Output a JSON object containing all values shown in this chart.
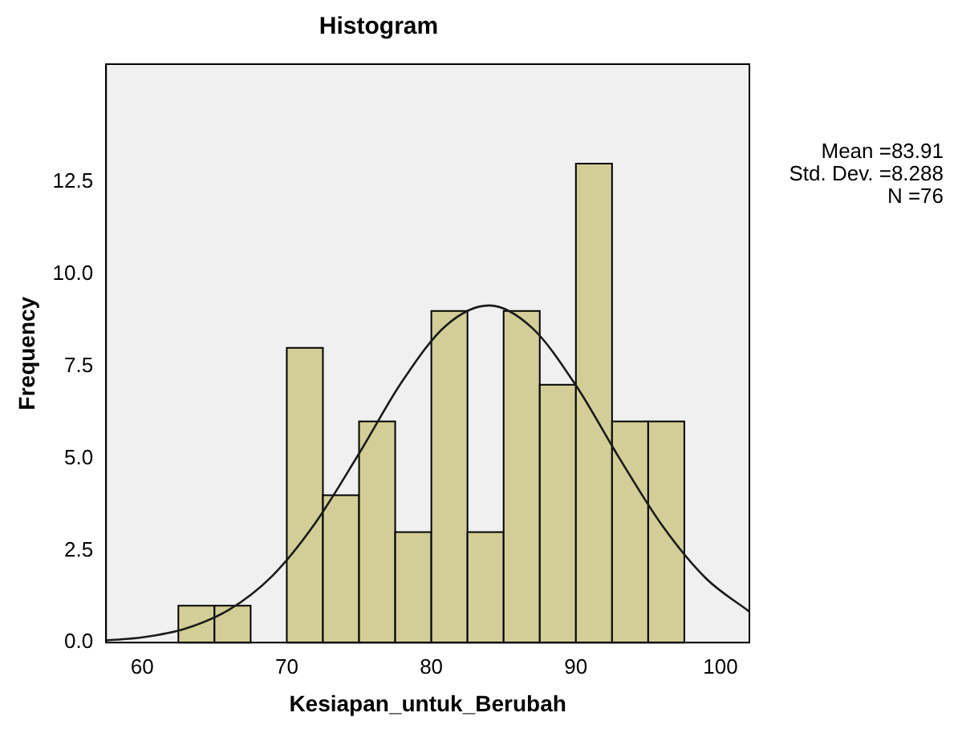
{
  "chart_data": {
    "type": "histogram",
    "title": "Histogram",
    "xlabel": "Kesiapan_untuk_Berubah",
    "ylabel": "Frequency",
    "bins": [
      62.5,
      65,
      67.5,
      70,
      72.5,
      75,
      77.5,
      80,
      82.5,
      85,
      87.5,
      90,
      92.5,
      95,
      97.5
    ],
    "values": [
      1,
      1,
      0,
      8,
      4,
      6,
      3,
      9,
      3,
      9,
      7,
      13,
      6,
      6
    ],
    "color": "#d3ce97",
    "series": [
      {
        "type": "line",
        "color": "#1a1a1a",
        "x": [
          57.5,
          60,
          63,
          66,
          69,
          72,
          75,
          78,
          81,
          84,
          87,
          90,
          93,
          96,
          99,
          102
        ],
        "values": [
          0.06,
          0.14,
          0.38,
          0.89,
          1.81,
          3.26,
          5.13,
          7.1,
          8.6,
          9.15,
          8.53,
          6.98,
          5.01,
          3.16,
          1.74,
          0.84
        ]
      }
    ],
    "xlim": [
      57.5,
      102
    ],
    "xticks": [
      60,
      70,
      80,
      90,
      100
    ],
    "ylim": [
      0,
      15.7
    ],
    "yticks": [
      {
        "value": 0,
        "label": "0.0"
      },
      {
        "value": 2.5,
        "label": "2.5"
      },
      {
        "value": 5,
        "label": "5.0"
      },
      {
        "value": 7.5,
        "label": "7.5"
      },
      {
        "value": 10,
        "label": "10.0"
      },
      {
        "value": 12.5,
        "label": "12.5"
      }
    ],
    "grid": false,
    "legend": false,
    "marker": "none",
    "annotations": [
      "Mean =83.91",
      "Std. Dev. =8.288",
      "N =76"
    ]
  }
}
